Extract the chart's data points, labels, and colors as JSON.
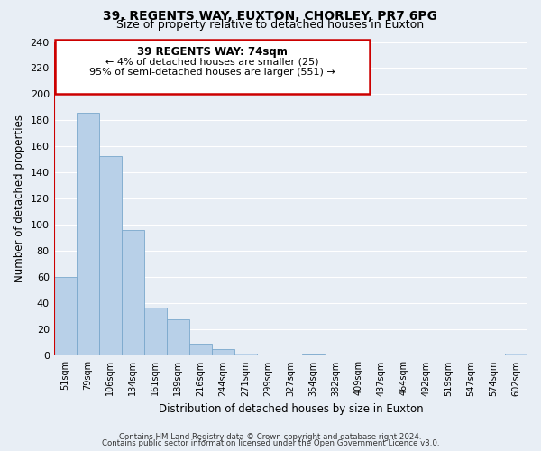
{
  "title": "39, REGENTS WAY, EUXTON, CHORLEY, PR7 6PG",
  "subtitle": "Size of property relative to detached houses in Euxton",
  "xlabel": "Distribution of detached houses by size in Euxton",
  "ylabel": "Number of detached properties",
  "bar_labels": [
    "51sqm",
    "79sqm",
    "106sqm",
    "134sqm",
    "161sqm",
    "189sqm",
    "216sqm",
    "244sqm",
    "271sqm",
    "299sqm",
    "327sqm",
    "354sqm",
    "382sqm",
    "409sqm",
    "437sqm",
    "464sqm",
    "492sqm",
    "519sqm",
    "547sqm",
    "574sqm",
    "602sqm"
  ],
  "bar_values": [
    60,
    186,
    153,
    96,
    37,
    28,
    9,
    5,
    2,
    0,
    0,
    1,
    0,
    0,
    0,
    0,
    0,
    0,
    0,
    0,
    2
  ],
  "bar_color": "#b8d0e8",
  "bar_edge_color": "#7aa8cc",
  "marker_label": "39 REGENTS WAY: 74sqm",
  "annotation_line1": "← 4% of detached houses are smaller (25)",
  "annotation_line2": "95% of semi-detached houses are larger (551) →",
  "box_edge_color": "#cc0000",
  "marker_line_color": "#cc0000",
  "ylim": [
    0,
    240
  ],
  "yticks": [
    0,
    20,
    40,
    60,
    80,
    100,
    120,
    140,
    160,
    180,
    200,
    220,
    240
  ],
  "footer_line1": "Contains HM Land Registry data © Crown copyright and database right 2024.",
  "footer_line2": "Contains public sector information licensed under the Open Government Licence v3.0.",
  "bg_color": "#e8eef5",
  "plot_bg_color": "#e8eef5",
  "grid_color": "#ffffff",
  "title_fontsize": 10,
  "subtitle_fontsize": 9
}
